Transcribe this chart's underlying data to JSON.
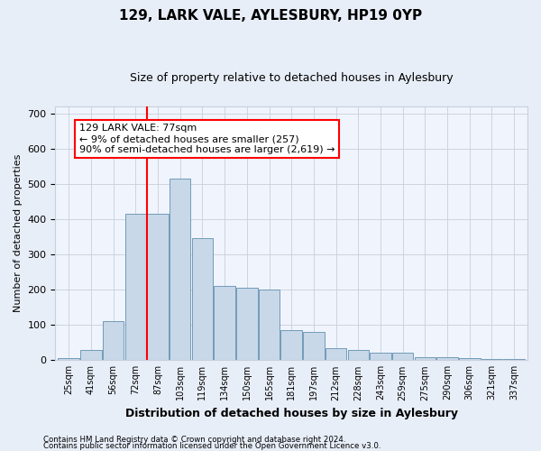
{
  "title1": "129, LARK VALE, AYLESBURY, HP19 0YP",
  "title2": "Size of property relative to detached houses in Aylesbury",
  "xlabel": "Distribution of detached houses by size in Aylesbury",
  "ylabel": "Number of detached properties",
  "bin_labels": [
    "25sqm",
    "41sqm",
    "56sqm",
    "72sqm",
    "87sqm",
    "103sqm",
    "119sqm",
    "134sqm",
    "150sqm",
    "165sqm",
    "181sqm",
    "197sqm",
    "212sqm",
    "228sqm",
    "243sqm",
    "259sqm",
    "275sqm",
    "290sqm",
    "306sqm",
    "321sqm",
    "337sqm"
  ],
  "values": [
    5,
    30,
    110,
    415,
    415,
    515,
    345,
    210,
    205,
    200,
    85,
    80,
    35,
    28,
    22,
    20,
    8,
    8,
    5,
    3,
    3
  ],
  "bar_color": "#c8d8e8",
  "bar_edge_color": "#6090b0",
  "vline_color": "red",
  "vline_x_index": 3.5,
  "annotation_text": "129 LARK VALE: 77sqm\n← 9% of detached houses are smaller (257)\n90% of semi-detached houses are larger (2,619) →",
  "annotation_box_color": "white",
  "annotation_box_edge": "red",
  "ylim": [
    0,
    720
  ],
  "yticks": [
    0,
    100,
    200,
    300,
    400,
    500,
    600,
    700
  ],
  "footer1": "Contains HM Land Registry data © Crown copyright and database right 2024.",
  "footer2": "Contains public sector information licensed under the Open Government Licence v3.0.",
  "bg_color": "#e8eef8",
  "plot_bg_color": "#f0f4fc",
  "grid_color": "#c8d0dc",
  "title1_fontsize": 11,
  "title2_fontsize": 9,
  "ylabel_fontsize": 8,
  "xlabel_fontsize": 9
}
